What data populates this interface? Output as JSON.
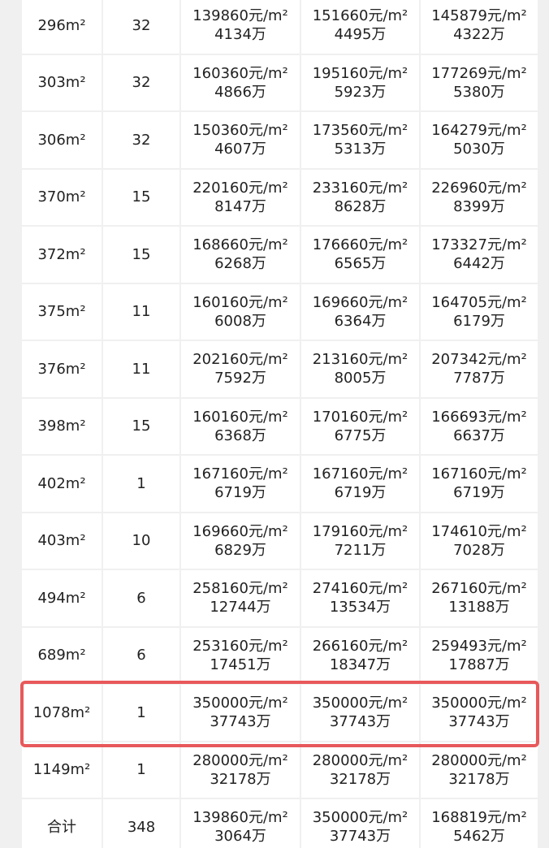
{
  "table": {
    "rows": [
      [
        "296m²",
        "32",
        [
          "139860元/m²",
          "4134万"
        ],
        [
          "151660元/m²",
          "4495万"
        ],
        [
          "145879元/m²",
          "4322万"
        ]
      ],
      [
        "303m²",
        "32",
        [
          "160360元/m²",
          "4866万"
        ],
        [
          "195160元/m²",
          "5923万"
        ],
        [
          "177269元/m²",
          "5380万"
        ]
      ],
      [
        "306m²",
        "32",
        [
          "150360元/m²",
          "4607万"
        ],
        [
          "173560元/m²",
          "5313万"
        ],
        [
          "164279元/m²",
          "5030万"
        ]
      ],
      [
        "370m²",
        "15",
        [
          "220160元/m²",
          "8147万"
        ],
        [
          "233160元/m²",
          "8628万"
        ],
        [
          "226960元/m²",
          "8399万"
        ]
      ],
      [
        "372m²",
        "15",
        [
          "168660元/m²",
          "6268万"
        ],
        [
          "176660元/m²",
          "6565万"
        ],
        [
          "173327元/m²",
          "6442万"
        ]
      ],
      [
        "375m²",
        "11",
        [
          "160160元/m²",
          "6008万"
        ],
        [
          "169660元/m²",
          "6364万"
        ],
        [
          "164705元/m²",
          "6179万"
        ]
      ],
      [
        "376m²",
        "11",
        [
          "202160元/m²",
          "7592万"
        ],
        [
          "213160元/m²",
          "8005万"
        ],
        [
          "207342元/m²",
          "7787万"
        ]
      ],
      [
        "398m²",
        "15",
        [
          "160160元/m²",
          "6368万"
        ],
        [
          "170160元/m²",
          "6775万"
        ],
        [
          "166693元/m²",
          "6637万"
        ]
      ],
      [
        "402m²",
        "1",
        [
          "167160元/m²",
          "6719万"
        ],
        [
          "167160元/m²",
          "6719万"
        ],
        [
          "167160元/m²",
          "6719万"
        ]
      ],
      [
        "403m²",
        "10",
        [
          "169660元/m²",
          "6829万"
        ],
        [
          "179160元/m²",
          "7211万"
        ],
        [
          "174610元/m²",
          "7028万"
        ]
      ],
      [
        "494m²",
        "6",
        [
          "258160元/m²",
          "12744万"
        ],
        [
          "274160元/m²",
          "13534万"
        ],
        [
          "267160元/m²",
          "13188万"
        ]
      ],
      [
        "689m²",
        "6",
        [
          "253160元/m²",
          "17451万"
        ],
        [
          "266160元/m²",
          "18347万"
        ],
        [
          "259493元/m²",
          "17887万"
        ]
      ],
      [
        "1078m²",
        "1",
        [
          "350000元/m²",
          "37743万"
        ],
        [
          "350000元/m²",
          "37743万"
        ],
        [
          "350000元/m²",
          "37743万"
        ]
      ],
      [
        "1149m²",
        "1",
        [
          "280000元/m²",
          "32178万"
        ],
        [
          "280000元/m²",
          "32178万"
        ],
        [
          "280000元/m²",
          "32178万"
        ]
      ],
      [
        "合计",
        "348",
        [
          "139860元/m²",
          "3064万"
        ],
        [
          "350000元/m²",
          "37743万"
        ],
        [
          "168819元/m²",
          "5462万"
        ]
      ]
    ]
  }
}
